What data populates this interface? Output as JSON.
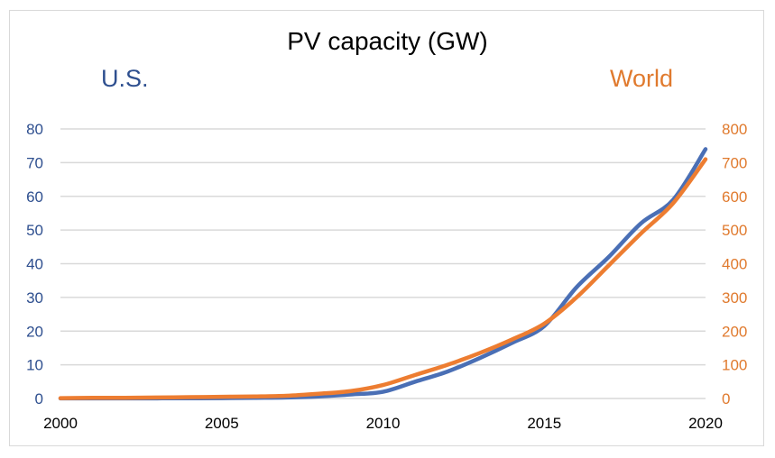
{
  "chart_data": {
    "type": "line",
    "title": "PV capacity (GW)",
    "x": [
      2000,
      2001,
      2002,
      2003,
      2004,
      2005,
      2006,
      2007,
      2008,
      2009,
      2010,
      2011,
      2012,
      2013,
      2014,
      2015,
      2016,
      2017,
      2018,
      2019,
      2020
    ],
    "xlim": [
      2000,
      2020
    ],
    "x_ticks": [
      "2000",
      "2005",
      "2010",
      "2015",
      "2020"
    ],
    "series": [
      {
        "name": "U.S.",
        "axis": "left",
        "color": "#4a6fb5",
        "values": [
          0.02,
          0.03,
          0.04,
          0.05,
          0.07,
          0.1,
          0.2,
          0.3,
          0.6,
          1.2,
          2.0,
          5.0,
          8.0,
          12.0,
          16.5,
          21.5,
          33.0,
          42.0,
          52.0,
          59.0,
          74.0
        ]
      },
      {
        "name": "World",
        "axis": "right",
        "color": "#ed7d31",
        "values": [
          1,
          2,
          2,
          3,
          4,
          5,
          6,
          8,
          14,
          22,
          40,
          70,
          100,
          135,
          175,
          222,
          300,
          395,
          490,
          580,
          710
        ]
      }
    ],
    "y_left": {
      "ylim": [
        0,
        80
      ],
      "ticks": [
        "0",
        "10",
        "20",
        "30",
        "40",
        "50",
        "60",
        "70",
        "80"
      ],
      "color": "#2e4f8f"
    },
    "y_right": {
      "ylim": [
        0,
        800
      ],
      "ticks": [
        "0",
        "100",
        "200",
        "300",
        "400",
        "500",
        "600",
        "700",
        "800"
      ],
      "color": "#e07a2e"
    },
    "grid": true
  }
}
